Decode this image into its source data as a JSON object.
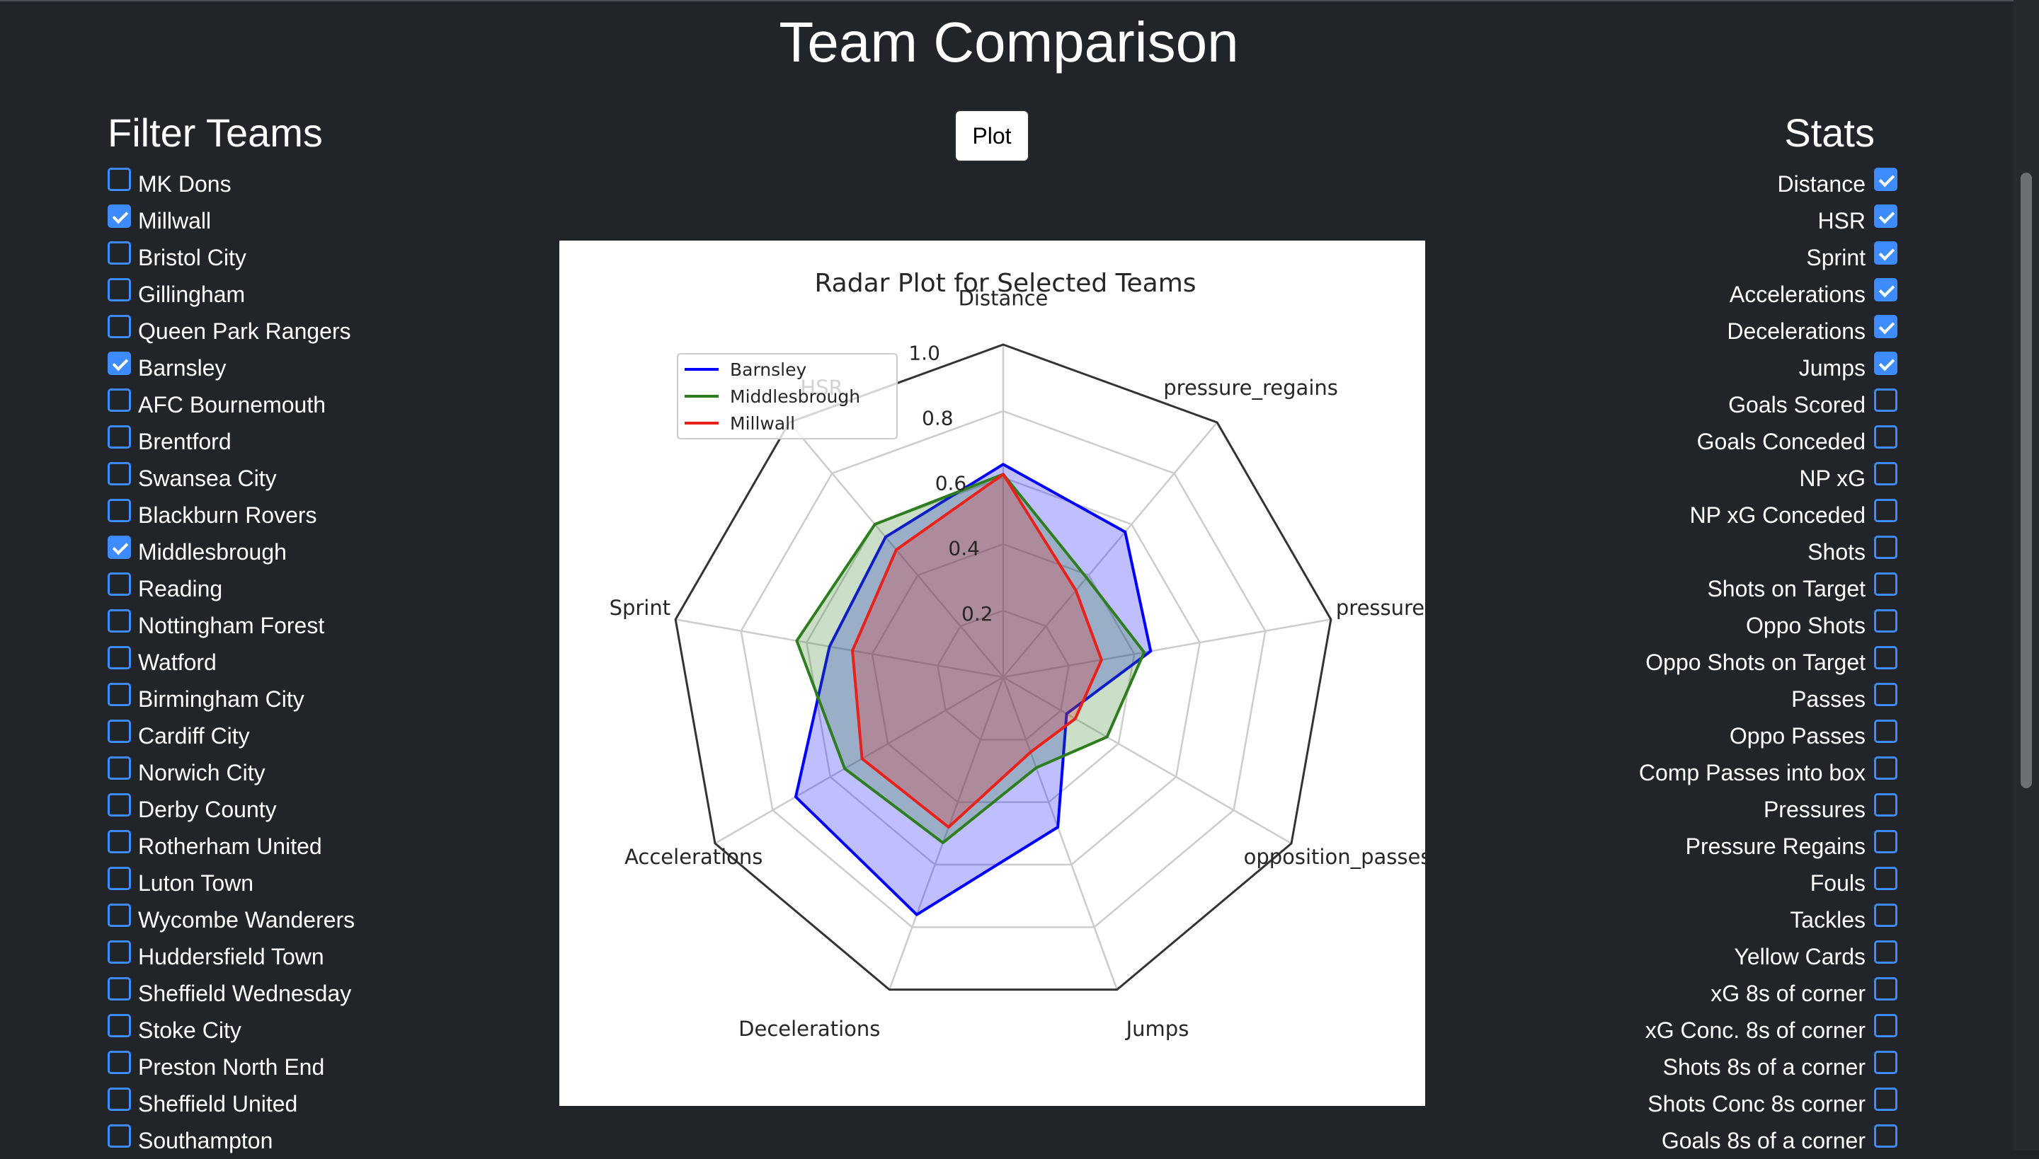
{
  "page": {
    "title": "Team Comparison"
  },
  "filter": {
    "heading": "Filter Teams",
    "teams": [
      {
        "label": "MK Dons",
        "checked": false
      },
      {
        "label": "Millwall",
        "checked": true
      },
      {
        "label": "Bristol City",
        "checked": false
      },
      {
        "label": "Gillingham",
        "checked": false
      },
      {
        "label": "Queen Park Rangers",
        "checked": false
      },
      {
        "label": "Barnsley",
        "checked": true
      },
      {
        "label": "AFC Bournemouth",
        "checked": false
      },
      {
        "label": "Brentford",
        "checked": false
      },
      {
        "label": "Swansea City",
        "checked": false
      },
      {
        "label": "Blackburn Rovers",
        "checked": false
      },
      {
        "label": "Middlesbrough",
        "checked": true
      },
      {
        "label": "Reading",
        "checked": false
      },
      {
        "label": "Nottingham Forest",
        "checked": false
      },
      {
        "label": "Watford",
        "checked": false
      },
      {
        "label": "Birmingham City",
        "checked": false
      },
      {
        "label": "Cardiff City",
        "checked": false
      },
      {
        "label": "Norwich City",
        "checked": false
      },
      {
        "label": "Derby County",
        "checked": false
      },
      {
        "label": "Rotherham United",
        "checked": false
      },
      {
        "label": "Luton Town",
        "checked": false
      },
      {
        "label": "Wycombe Wanderers",
        "checked": false
      },
      {
        "label": "Huddersfield Town",
        "checked": false
      },
      {
        "label": "Sheffield Wednesday",
        "checked": false
      },
      {
        "label": "Stoke City",
        "checked": false
      },
      {
        "label": "Preston North End",
        "checked": false
      },
      {
        "label": "Sheffield United",
        "checked": false
      },
      {
        "label": "Southampton",
        "checked": false
      }
    ]
  },
  "stats": {
    "heading": "Stats",
    "items": [
      {
        "label": "Distance",
        "checked": true
      },
      {
        "label": "HSR",
        "checked": true
      },
      {
        "label": "Sprint",
        "checked": true
      },
      {
        "label": "Accelerations",
        "checked": true
      },
      {
        "label": "Decelerations",
        "checked": true
      },
      {
        "label": "Jumps",
        "checked": true
      },
      {
        "label": "Goals Scored",
        "checked": false
      },
      {
        "label": "Goals Conceded",
        "checked": false
      },
      {
        "label": "NP xG",
        "checked": false
      },
      {
        "label": "NP xG Conceded",
        "checked": false
      },
      {
        "label": "Shots",
        "checked": false
      },
      {
        "label": "Shots on Target",
        "checked": false
      },
      {
        "label": "Oppo Shots",
        "checked": false
      },
      {
        "label": "Oppo Shots on Target",
        "checked": false
      },
      {
        "label": "Passes",
        "checked": false
      },
      {
        "label": "Oppo Passes",
        "checked": false
      },
      {
        "label": "Comp Passes into box",
        "checked": false
      },
      {
        "label": "Pressures",
        "checked": false
      },
      {
        "label": "Pressure Regains",
        "checked": false
      },
      {
        "label": "Fouls",
        "checked": false
      },
      {
        "label": "Tackles",
        "checked": false
      },
      {
        "label": "Yellow Cards",
        "checked": false
      },
      {
        "label": "xG 8s of corner",
        "checked": false
      },
      {
        "label": "xG Conc. 8s of corner",
        "checked": false
      },
      {
        "label": "Shots 8s of a corner",
        "checked": false
      },
      {
        "label": "Shots Conc 8s corner",
        "checked": false
      },
      {
        "label": "Goals 8s of a corner",
        "checked": false
      }
    ]
  },
  "toolbar": {
    "plot_label": "Plot"
  },
  "colors": {
    "accent": "#3d8bfd",
    "background": "#212529"
  },
  "chart_data": {
    "type": "radar",
    "title": "Radar Plot for Selected Teams",
    "axes": [
      "Distance",
      "pressure_regains",
      "pressures",
      "opposition_passes",
      "Jumps",
      "Decelerations",
      "Accelerations",
      "Sprint",
      "HSR"
    ],
    "radial_ticks": [
      "0.2",
      "0.4",
      "0.6",
      "0.8",
      "1.0"
    ],
    "rlim": [
      0,
      1
    ],
    "legend_position": "upper-left",
    "series": [
      {
        "name": "Barnsley",
        "color": "#0000ff",
        "values": [
          0.64,
          0.57,
          0.45,
          0.22,
          0.48,
          0.76,
          0.72,
          0.53,
          0.55
        ]
      },
      {
        "name": "Middlesbrough",
        "color": "#2e7d1f",
        "values": [
          0.61,
          0.39,
          0.43,
          0.36,
          0.29,
          0.53,
          0.55,
          0.63,
          0.6
        ]
      },
      {
        "name": "Millwall",
        "color": "#e8221a",
        "values": [
          0.61,
          0.34,
          0.3,
          0.25,
          0.24,
          0.48,
          0.49,
          0.46,
          0.5
        ]
      }
    ]
  }
}
